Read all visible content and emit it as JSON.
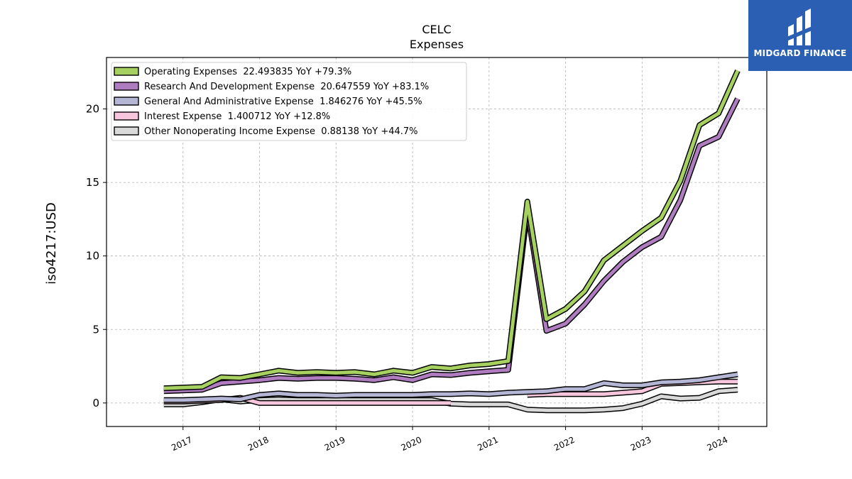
{
  "logo": {
    "name": "MIDGARD FINANCE",
    "color": "#2b5fb3"
  },
  "chart_data": {
    "type": "line",
    "title": "CELC",
    "subtitle": "Expenses",
    "ylabel": "iso4217:USD",
    "xlabel": "",
    "ylim": [
      -1.6,
      23.5
    ],
    "xlim": [
      2016.0,
      2024.63
    ],
    "yticks": [
      0,
      5,
      10,
      15,
      20
    ],
    "xticks": [
      "2017",
      "2018",
      "2019",
      "2020",
      "2021",
      "2022",
      "2023",
      "2024"
    ],
    "grid": true,
    "legend_position": "top-left",
    "x": [
      2016.75,
      2017.0,
      2017.25,
      2017.5,
      2017.75,
      2018.0,
      2018.25,
      2018.5,
      2018.75,
      2019.0,
      2019.25,
      2019.5,
      2019.75,
      2020.0,
      2020.25,
      2020.5,
      2020.75,
      2021.0,
      2021.25,
      2021.5,
      2021.75,
      2022.0,
      2022.25,
      2022.5,
      2022.75,
      2023.0,
      2023.25,
      2023.5,
      2023.75,
      2024.0,
      2024.25
    ],
    "series": [
      {
        "name": "Operating Expenses",
        "legend": "Operating Expenses  22.493835 YoY +79.3%",
        "color": "#a6d160",
        "values": [
          1.0,
          1.05,
          1.1,
          1.75,
          1.7,
          1.95,
          2.2,
          2.05,
          2.1,
          2.05,
          2.1,
          1.95,
          2.2,
          2.05,
          2.45,
          2.35,
          2.55,
          2.65,
          2.85,
          13.7,
          5.7,
          6.4,
          7.6,
          9.7,
          10.7,
          11.7,
          12.6,
          15.1,
          18.9,
          19.7,
          22.6
        ]
      },
      {
        "name": "Research And Development Expense",
        "legend": "Research And Development Expense  20.647559 YoY +83.1%",
        "color": "#b07cc0",
        "values": [
          0.8,
          0.85,
          0.9,
          1.35,
          1.45,
          1.55,
          1.7,
          1.65,
          1.7,
          1.7,
          1.65,
          1.55,
          1.75,
          1.55,
          1.95,
          1.9,
          2.05,
          2.15,
          2.25,
          13.1,
          4.9,
          5.4,
          6.7,
          8.3,
          9.6,
          10.6,
          11.3,
          13.8,
          17.5,
          18.1,
          20.7
        ]
      },
      {
        "name": "General And Administrative Expense",
        "legend": "General And Administrative Expense  1.846276 YoY +45.5%",
        "color": "#b5b5d6",
        "values": [
          0.2,
          0.2,
          0.25,
          0.3,
          0.25,
          0.55,
          0.65,
          0.55,
          0.55,
          0.5,
          0.55,
          0.55,
          0.55,
          0.55,
          0.6,
          0.6,
          0.65,
          0.6,
          0.7,
          0.75,
          0.8,
          0.95,
          0.95,
          1.35,
          1.2,
          1.2,
          1.4,
          1.45,
          1.55,
          1.75,
          1.95
        ]
      },
      {
        "name": "Interest Expense",
        "legend": "Interest Expense  1.400712 YoY +12.8%",
        "color": "#f7c6dc",
        "values": [
          0.1,
          0.1,
          0.15,
          0.2,
          0.35,
          0.0,
          0.0,
          0.0,
          0.0,
          0.0,
          0.0,
          0.0,
          0.0,
          0.0,
          0.0,
          0.0,
          null,
          null,
          null,
          0.55,
          0.6,
          0.6,
          0.6,
          0.6,
          0.7,
          0.8,
          1.3,
          1.35,
          1.4,
          1.45,
          1.45
        ]
      },
      {
        "name": "Other Nonoperating Income Expense",
        "legend": "Other Nonoperating Income Expense  0.88138 YoY +44.7%",
        "color": "#d9d9d9",
        "values": [
          -0.1,
          -0.1,
          0.05,
          0.25,
          0.1,
          0.2,
          0.25,
          0.2,
          0.2,
          0.2,
          0.2,
          0.2,
          0.2,
          0.2,
          0.2,
          -0.05,
          -0.1,
          -0.1,
          -0.1,
          -0.45,
          -0.5,
          -0.5,
          -0.5,
          -0.45,
          -0.35,
          -0.05,
          0.45,
          0.3,
          0.35,
          0.8,
          0.9
        ]
      }
    ]
  }
}
